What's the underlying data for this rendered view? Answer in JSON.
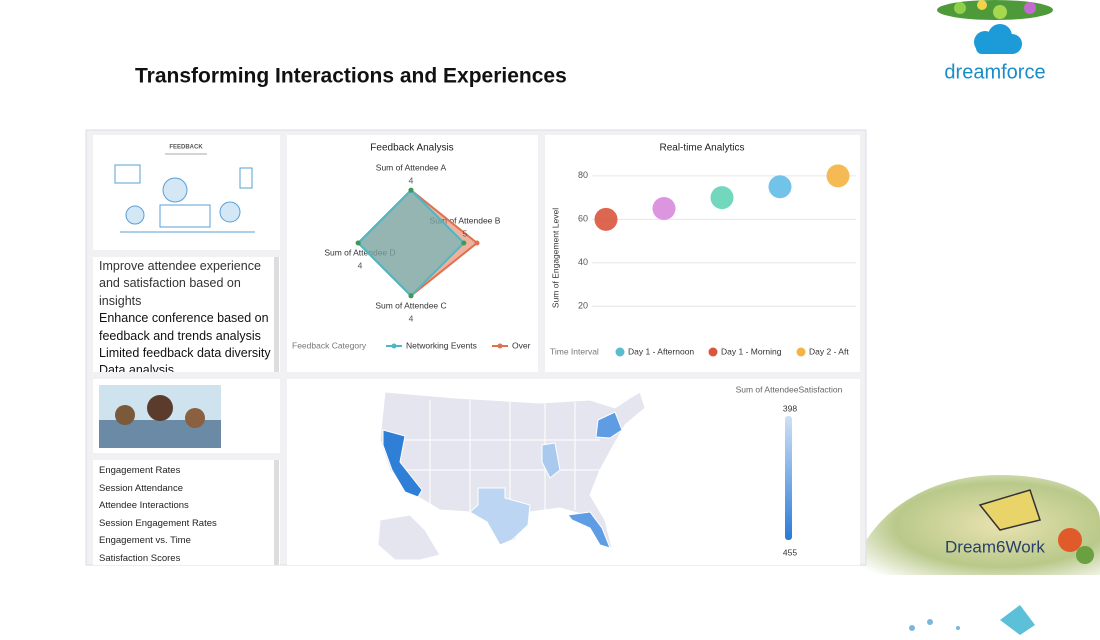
{
  "slide": {
    "title": "Transforming Interactions and Experiences",
    "logo_text": "dreamforce",
    "badge_text": "Dream6Work"
  },
  "dashboard": {
    "feedback_image_label": "FEEDBACK",
    "insights": [
      "Improve attendee experience and satisfaction based on insights",
      "Enhance conference based on feedback and trends analysis",
      "Limited feedback data diversity",
      "Data analysis"
    ],
    "metrics": [
      "Engagement Rates",
      "Session Attendance",
      "Attendee Interactions",
      "Session Engagement Rates",
      "Engagement vs. Time",
      "Satisfaction Scores"
    ]
  },
  "chart_data": [
    {
      "type": "radar",
      "title": "Feedback Analysis",
      "axes": [
        "Sum of Attendee A",
        "Sum of Attendee B",
        "Sum of Attendee C",
        "Sum of Attendee D"
      ],
      "rlim": [
        0,
        5
      ],
      "legend_title": "Feedback Category",
      "series": [
        {
          "name": "Networking Events",
          "color": "#4cb8c4",
          "values": [
            4,
            4,
            4,
            4
          ]
        },
        {
          "name": "Over",
          "color": "#e0714f",
          "values": [
            4,
            5,
            4,
            4
          ]
        }
      ]
    },
    {
      "type": "scatter",
      "title": "Real-time Analytics",
      "y_label": "Sum of Engagement Level",
      "categories": [
        null,
        null,
        null,
        null,
        null
      ],
      "values": [
        60,
        65,
        70,
        75,
        80
      ],
      "colors": [
        "#d9553e",
        "#d889dc",
        "#62d3b6",
        "#63bce8",
        "#f5b342"
      ],
      "ylim": [
        10,
        85
      ],
      "yticks": [
        20,
        40,
        60,
        80
      ],
      "grid": true,
      "legend_title": "Time Interval",
      "legend": [
        {
          "name": "Day 1 - Afternoon",
          "color": "#5bbccf"
        },
        {
          "name": "Day 1 - Morning",
          "color": "#d9553e"
        },
        {
          "name": "Day 2 - Aft",
          "color": "#f5b342"
        }
      ]
    },
    {
      "type": "choropleth",
      "legend_title": "Sum of AttendeeSatisfaction",
      "clim": [
        398,
        455
      ],
      "cticks": [
        398,
        455
      ]
    }
  ]
}
